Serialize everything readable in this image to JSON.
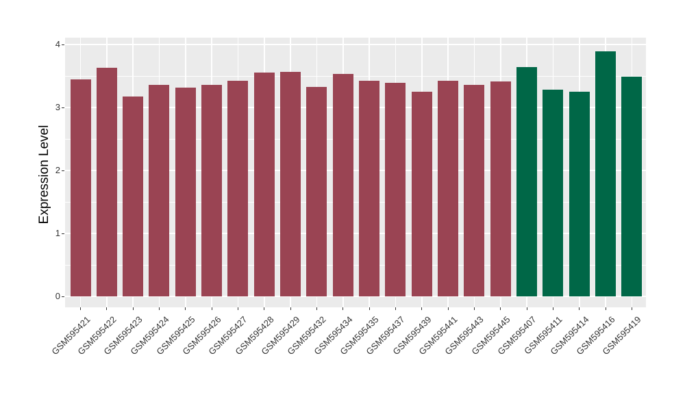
{
  "chart_data": {
    "type": "bar",
    "title": "",
    "xlabel": "",
    "ylabel": "Expression Level",
    "ylim": [
      0,
      4
    ],
    "yticks": [
      "0",
      "1",
      "2",
      "3",
      "4"
    ],
    "grid": "white major and minor gridlines on gray panel",
    "legend_position": "none",
    "categories": [
      "GSM595421",
      "GSM595422",
      "GSM595423",
      "GSM595424",
      "GSM595425",
      "GSM595426",
      "GSM595427",
      "GSM595428",
      "GSM595429",
      "GSM595432",
      "GSM595434",
      "GSM595435",
      "GSM595437",
      "GSM595439",
      "GSM595441",
      "GSM595443",
      "GSM595445",
      "GSM595407",
      "GSM595411",
      "GSM595414",
      "GSM595416",
      "GSM595419"
    ],
    "values": [
      3.45,
      3.63,
      3.17,
      3.36,
      3.32,
      3.36,
      3.42,
      3.55,
      3.57,
      3.33,
      3.53,
      3.42,
      3.39,
      3.25,
      3.42,
      3.36,
      3.41,
      3.64,
      3.28,
      3.25,
      3.89,
      3.49
    ],
    "bar_colors": [
      "#9A4453",
      "#9A4453",
      "#9A4453",
      "#9A4453",
      "#9A4453",
      "#9A4453",
      "#9A4453",
      "#9A4453",
      "#9A4453",
      "#9A4453",
      "#9A4453",
      "#9A4453",
      "#9A4453",
      "#9A4453",
      "#9A4453",
      "#9A4453",
      "#9A4453",
      "#006747",
      "#006747",
      "#006747",
      "#006747",
      "#006747"
    ]
  },
  "style": {
    "background": "#FFFFFF",
    "panel_bg": "#EBEBEB",
    "grid_color": "#FFFFFF",
    "tick_mark_color": "#333333",
    "tick_label_color": "#333333",
    "axis_title_color": "#000000",
    "bar_red": "#9A4453",
    "bar_green": "#006747"
  }
}
